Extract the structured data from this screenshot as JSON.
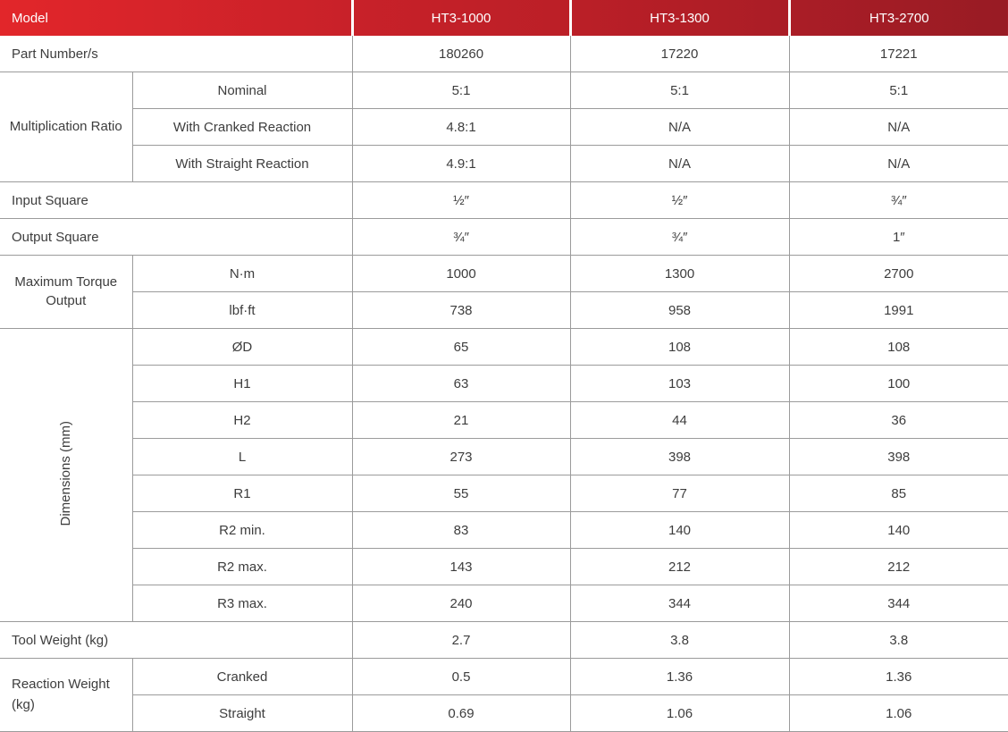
{
  "colors": {
    "header_gradient_left": "#e2262a",
    "header_gradient_right": "#981b24",
    "header_text": "#ffffff",
    "body_text": "#3d3d3d",
    "grid_border": "#9b9b9b"
  },
  "table": {
    "header": {
      "model": "Model",
      "columns": [
        "HT3-1000",
        "HT3-1300",
        "HT3-2700"
      ]
    },
    "part_number": {
      "label": "Part Number/s",
      "values": [
        "180260",
        "17220",
        "17221"
      ]
    },
    "multiplication_ratio": {
      "label": "Multiplication Ratio",
      "rows": [
        {
          "label": "Nominal",
          "values": [
            "5:1",
            "5:1",
            "5:1"
          ]
        },
        {
          "label": "With Cranked Reaction",
          "values": [
            "4.8:1",
            "N/A",
            "N/A"
          ]
        },
        {
          "label": "With Straight Reaction",
          "values": [
            "4.9:1",
            "N/A",
            "N/A"
          ]
        }
      ]
    },
    "input_square": {
      "label": "Input Square",
      "values": [
        "½″",
        "½″",
        "¾″"
      ]
    },
    "output_square": {
      "label": "Output Square",
      "values": [
        "¾″",
        "¾″",
        "1″"
      ]
    },
    "max_torque": {
      "label": "Maximum Torque Output",
      "rows": [
        {
          "label": "N·m",
          "values": [
            "1000",
            "1300",
            "2700"
          ]
        },
        {
          "label": "lbf·ft",
          "values": [
            "738",
            "958",
            "1991"
          ]
        }
      ]
    },
    "dimensions": {
      "label": "Dimensions (mm)",
      "rows": [
        {
          "label": "ØD",
          "values": [
            "65",
            "108",
            "108"
          ]
        },
        {
          "label": "H1",
          "values": [
            "63",
            "103",
            "100"
          ]
        },
        {
          "label": "H2",
          "values": [
            "21",
            "44",
            "36"
          ]
        },
        {
          "label": "L",
          "values": [
            "273",
            "398",
            "398"
          ]
        },
        {
          "label": "R1",
          "values": [
            "55",
            "77",
            "85"
          ]
        },
        {
          "label": "R2 min.",
          "values": [
            "83",
            "140",
            "140"
          ]
        },
        {
          "label": "R2 max.",
          "values": [
            "143",
            "212",
            "212"
          ]
        },
        {
          "label": "R3 max.",
          "values": [
            "240",
            "344",
            "344"
          ]
        }
      ]
    },
    "tool_weight": {
      "label": "Tool Weight (kg)",
      "values": [
        "2.7",
        "3.8",
        "3.8"
      ]
    },
    "reaction_weight": {
      "label": "Reaction Weight (kg)",
      "rows": [
        {
          "label": "Cranked",
          "values": [
            "0.5",
            "1.36",
            "1.36"
          ]
        },
        {
          "label": "Straight",
          "values": [
            "0.69",
            "1.06",
            "1.06"
          ]
        }
      ]
    }
  }
}
